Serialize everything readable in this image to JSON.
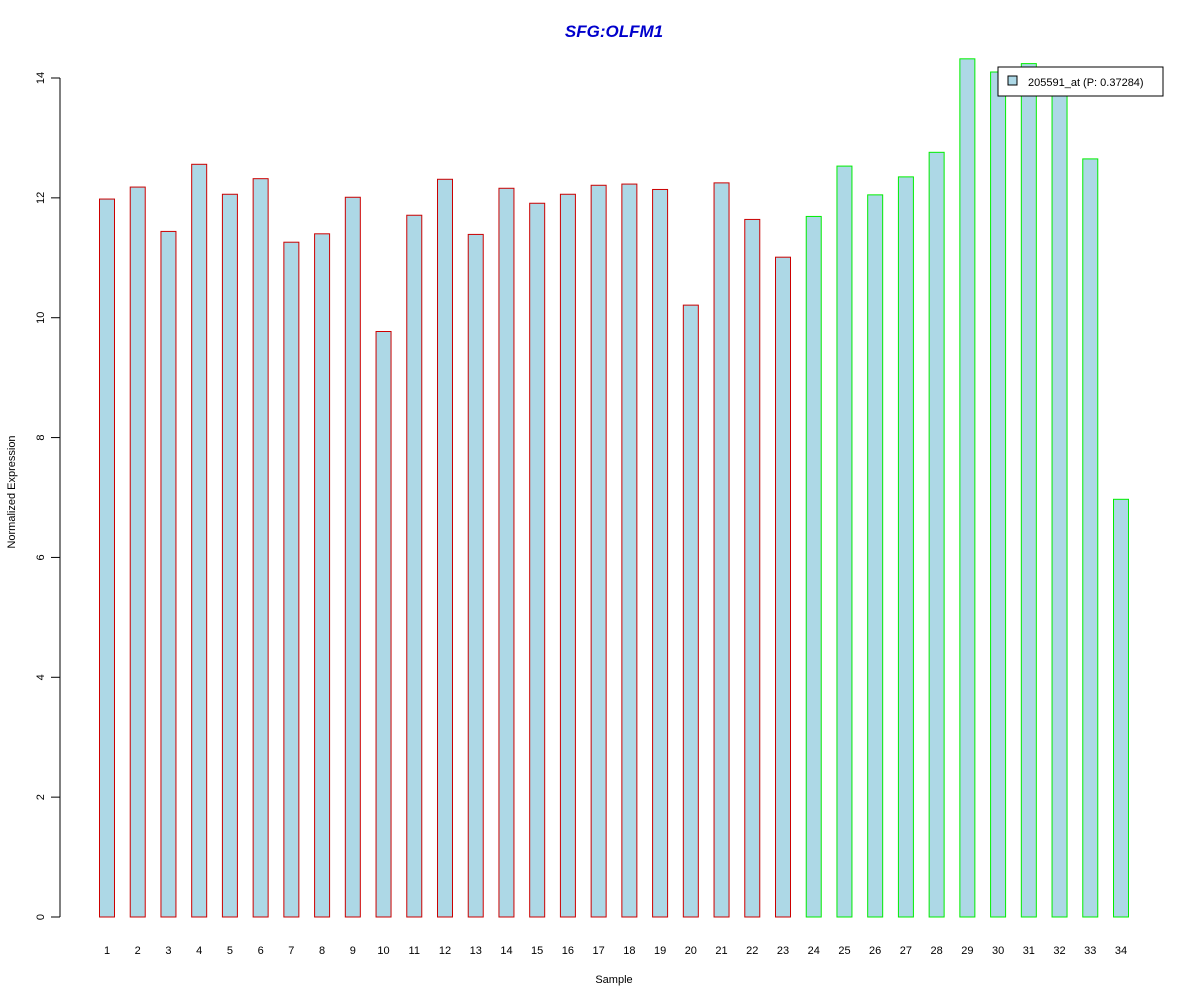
{
  "chart_data": {
    "type": "bar",
    "title": "SFG:OLFM1",
    "xlabel": "Sample",
    "ylabel": "Normalized Expression",
    "ylim": [
      0,
      14.3
    ],
    "y_ticks": [
      0,
      2,
      4,
      6,
      8,
      10,
      12,
      14
    ],
    "grid": false,
    "legend_position": "top-right",
    "categories": [
      "1",
      "2",
      "3",
      "4",
      "5",
      "6",
      "7",
      "8",
      "9",
      "10",
      "11",
      "12",
      "13",
      "14",
      "15",
      "16",
      "17",
      "18",
      "19",
      "20",
      "21",
      "22",
      "23",
      "24",
      "25",
      "26",
      "27",
      "28",
      "29",
      "30",
      "31",
      "32",
      "33",
      "34"
    ],
    "series": [
      {
        "name": "205591_at (P: 0.37284)",
        "values": [
          11.98,
          12.18,
          11.44,
          12.56,
          12.06,
          12.32,
          11.26,
          11.4,
          12.01,
          9.77,
          11.71,
          12.31,
          11.39,
          12.16,
          11.91,
          12.06,
          12.21,
          12.23,
          12.14,
          10.21,
          12.25,
          11.64,
          11.01,
          11.69,
          12.53,
          12.05,
          12.35,
          12.76,
          14.32,
          14.1,
          14.24,
          13.82,
          12.65,
          6.97
        ]
      }
    ],
    "group_sizes": [
      23,
      11
    ],
    "colors": {
      "title": "#0000cc",
      "bar_fill": "#add8e6",
      "group_border": [
        "#cc0000",
        "#00ee00"
      ],
      "axis": "#000000"
    }
  }
}
